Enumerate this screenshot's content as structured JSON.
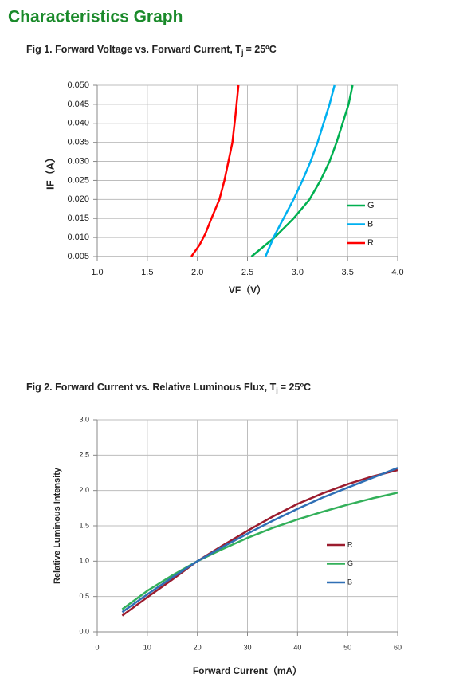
{
  "header": {
    "title": "Characteristics Graph"
  },
  "chart_data": [
    {
      "type": "line",
      "caption": {
        "text": "Fig 1. Forward Voltage vs. Forward Current, T",
        "subscript": "j",
        "rest": "= 25ºC"
      },
      "x_label": "VF（V）",
      "y_label": "IF（A）",
      "xlim": [
        1.0,
        4.0
      ],
      "xticks": [
        {
          "value": 1,
          "label": "1.0"
        },
        1.5,
        {
          "value": 2,
          "label": "2.0"
        },
        2.5,
        {
          "value": 3,
          "label": "3.0"
        },
        3.5,
        {
          "value": 4,
          "label": "4.0"
        }
      ],
      "ylim": [
        0.005,
        0.05
      ],
      "yticks": [
        0.005,
        {
          "value": 0.01,
          "label": "0.010"
        },
        0.015,
        {
          "value": 0.02,
          "label": "0.020"
        },
        0.025,
        {
          "value": 0.03,
          "label": "0.030"
        },
        0.035,
        {
          "value": 0.04,
          "label": "0.040"
        },
        0.045,
        {
          "value": 0.05,
          "label": "0.050"
        }
      ],
      "grid": true,
      "legend": "lower right",
      "series": [
        {
          "name": "G",
          "color": "#00b050",
          "x": [
            2.54,
            2.77,
            2.96,
            3.12,
            3.23,
            3.32,
            3.39,
            3.45,
            3.51,
            3.55
          ],
          "values": [
            0.005,
            0.01,
            0.015,
            0.02,
            0.025,
            0.03,
            0.035,
            0.04,
            0.045,
            0.05
          ]
        },
        {
          "name": "B",
          "color": "#00b0f0",
          "x": [
            2.68,
            2.76,
            2.86,
            2.96,
            3.05,
            3.13,
            3.2,
            3.26,
            3.32,
            3.37
          ],
          "values": [
            0.005,
            0.01,
            0.015,
            0.02,
            0.025,
            0.03,
            0.035,
            0.04,
            0.045,
            0.05
          ]
        },
        {
          "name": "R",
          "color": "#ff0000",
          "x": [
            1.94,
            2.02,
            2.08,
            2.14,
            2.22,
            2.27,
            2.31,
            2.35,
            2.38,
            2.41
          ],
          "values": [
            0.005,
            0.008,
            0.011,
            0.015,
            0.02,
            0.025,
            0.03,
            0.035,
            0.042,
            0.05
          ]
        }
      ]
    },
    {
      "type": "line",
      "caption": {
        "text": "Fig 2. Forward Current vs. Relative Luminous Flux, T",
        "subscript": "j",
        "rest": "= 25ºC"
      },
      "x_label": "Forward Current（mA）",
      "y_label": "Relative Luminous Intensity",
      "xlim": [
        0,
        60
      ],
      "xticks": [
        0,
        10,
        20,
        30,
        40,
        50,
        60
      ],
      "ylim": [
        0,
        3
      ],
      "yticks": [
        {
          "value": 0,
          "label": "0.0"
        },
        0.5,
        {
          "value": 1,
          "label": "1.0"
        },
        1.5,
        {
          "value": 2,
          "label": "2.0"
        },
        2.5,
        {
          "value": 3,
          "label": "3.0"
        }
      ],
      "grid": true,
      "legend": "center right",
      "x": [
        5,
        10,
        15,
        20,
        25,
        30,
        35,
        40,
        45,
        50,
        55,
        60
      ],
      "series": [
        {
          "name": "R",
          "color": "#9b1c2e",
          "values": [
            0.23,
            0.49,
            0.74,
            1.0,
            1.22,
            1.43,
            1.63,
            1.81,
            1.96,
            2.09,
            2.2,
            2.29
          ]
        },
        {
          "name": "G",
          "color": "#33b05a",
          "values": [
            0.32,
            0.58,
            0.8,
            1.0,
            1.17,
            1.33,
            1.47,
            1.59,
            1.7,
            1.8,
            1.89,
            1.97
          ]
        },
        {
          "name": "B",
          "color": "#2f6fb5",
          "values": [
            0.28,
            0.53,
            0.77,
            1.0,
            1.2,
            1.39,
            1.57,
            1.74,
            1.9,
            2.04,
            2.18,
            2.32
          ]
        }
      ]
    }
  ]
}
